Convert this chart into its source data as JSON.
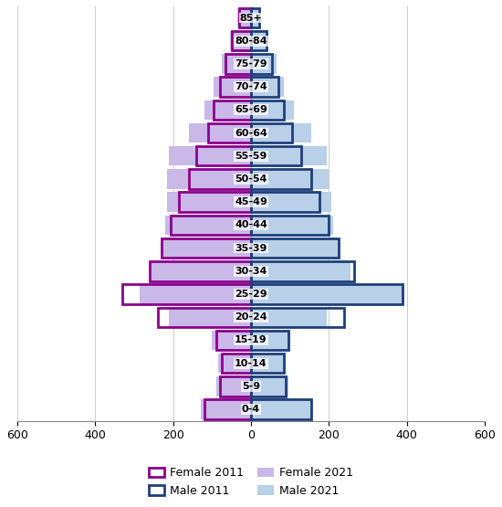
{
  "age_groups": [
    "0-4",
    "5-9",
    "10-14",
    "15-19",
    "20-24",
    "25-29",
    "30-34",
    "35-39",
    "40-44",
    "45-49",
    "50-54",
    "55-59",
    "60-64",
    "65-69",
    "70-74",
    "75-79",
    "80-84",
    "85+"
  ],
  "female_2011": [
    120,
    80,
    75,
    90,
    240,
    330,
    260,
    230,
    205,
    185,
    160,
    140,
    110,
    95,
    80,
    65,
    50,
    30
  ],
  "male_2011": [
    155,
    90,
    85,
    95,
    240,
    390,
    265,
    225,
    200,
    175,
    155,
    130,
    105,
    85,
    70,
    55,
    40,
    20
  ],
  "female_2021": [
    130,
    90,
    85,
    100,
    210,
    285,
    255,
    230,
    220,
    215,
    215,
    210,
    160,
    120,
    95,
    75,
    55,
    35
  ],
  "male_2021": [
    155,
    95,
    90,
    100,
    195,
    390,
    255,
    225,
    210,
    205,
    200,
    195,
    155,
    110,
    85,
    65,
    45,
    25
  ],
  "color_female_2011": "#8B008B",
  "color_male_2011": "#1F3F7A",
  "color_female_2021": "#C9B8E8",
  "color_male_2021": "#B8D0E8",
  "xlim": 600,
  "bar_height": 0.85
}
